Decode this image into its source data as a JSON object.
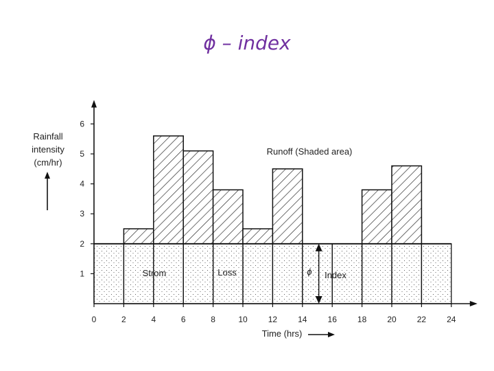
{
  "slide": {
    "title": "ϕ – index"
  },
  "chart_data": {
    "type": "bar",
    "ylabel_lines": [
      "Rainfall",
      "intensity",
      "(cm/hr)"
    ],
    "xlabel": "Time (hrs)",
    "x_ticks": [
      0,
      2,
      4,
      6,
      8,
      10,
      12,
      14,
      16,
      18,
      20,
      22,
      24
    ],
    "y_ticks": [
      1,
      2,
      3,
      4,
      5,
      6
    ],
    "xlim": [
      0,
      24
    ],
    "ylim": [
      0,
      6.8
    ],
    "phi_index": 2,
    "intervals": [
      {
        "start": 2,
        "end": 4,
        "value": 2.5
      },
      {
        "start": 4,
        "end": 6,
        "value": 5.6
      },
      {
        "start": 6,
        "end": 8,
        "value": 5.1
      },
      {
        "start": 8,
        "end": 10,
        "value": 3.8
      },
      {
        "start": 10,
        "end": 12,
        "value": 2.5
      },
      {
        "start": 12,
        "end": 14,
        "value": 4.5
      },
      {
        "start": 14,
        "end": 16,
        "value": 2.0
      },
      {
        "start": 16,
        "end": 18,
        "value": 2.0
      },
      {
        "start": 18,
        "end": 20,
        "value": 3.8
      },
      {
        "start": 20,
        "end": 22,
        "value": 4.6
      },
      {
        "start": 22,
        "end": 24,
        "value": 2.0
      }
    ],
    "annotations": {
      "runoff": "Runoff (Shaded area)",
      "storm": "Strom",
      "loss": "Loss",
      "phi": "ϕ",
      "index": "Index"
    }
  }
}
